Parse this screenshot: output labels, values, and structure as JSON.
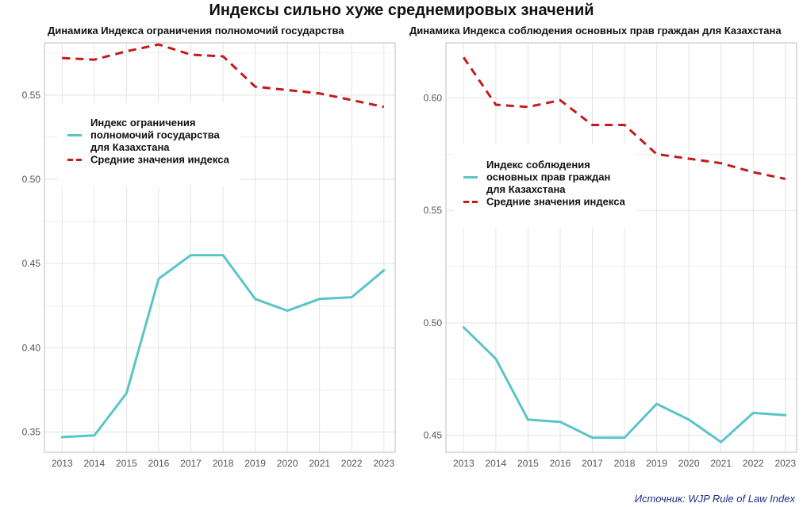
{
  "title": "Индексы сильно хуже среднемировых значений",
  "source": "Источник: WJP Rule of Law Index",
  "colors": {
    "index_line": "#5bc4c8",
    "average_line": "#c41a1a",
    "grid": "#e3e3e3",
    "panel_border": "#bdbdbd"
  },
  "chart_data": [
    {
      "type": "line",
      "title": "Динамика Индекса ограничения полномочий государства",
      "x": [
        2013,
        2014,
        2015,
        2016,
        2017,
        2018,
        2019,
        2020,
        2021,
        2022,
        2023
      ],
      "ylim": [
        0.338,
        0.581
      ],
      "yticks": [
        0.35,
        0.4,
        0.45,
        0.5,
        0.55
      ],
      "ytick_labels": [
        "0.35",
        "0.40",
        "0.45",
        "0.50",
        "0.55"
      ],
      "grid": true,
      "legend_position": "left-middle",
      "series": [
        {
          "name": "Индекс ограничения полномочий государства для Казахстана",
          "legend_lines": [
            "Индекс ограничения",
            "полномочий государства",
            "для Казахстана"
          ],
          "style": "solid",
          "color": "#5bc4c8",
          "values": [
            0.347,
            0.348,
            0.373,
            0.441,
            0.455,
            0.455,
            0.429,
            0.422,
            0.429,
            0.43,
            0.446
          ]
        },
        {
          "name": "Средние значения индекса",
          "legend_lines": [
            "Средние значения индекса"
          ],
          "style": "dashed",
          "color": "#c41a1a",
          "values": [
            0.572,
            0.571,
            0.576,
            0.58,
            0.574,
            0.573,
            0.555,
            0.553,
            0.551,
            0.547,
            0.543
          ]
        }
      ]
    },
    {
      "type": "line",
      "title": "Динамика Индекса соблюдения основных прав граждан для Казахстана",
      "x": [
        2013,
        2014,
        2015,
        2016,
        2017,
        2018,
        2019,
        2020,
        2021,
        2022,
        2023
      ],
      "ylim": [
        0.4425,
        0.6245
      ],
      "yticks": [
        0.45,
        0.5,
        0.55,
        0.6
      ],
      "ytick_labels": [
        "0.45",
        "0.50",
        "0.55",
        "0.60"
      ],
      "grid": true,
      "legend_position": "left-middle",
      "series": [
        {
          "name": "Индекс соблюдения основных прав граждан для Казахстана",
          "legend_lines": [
            "Индекс соблюдения",
            "основных прав граждан",
            "для Казахстана"
          ],
          "style": "solid",
          "color": "#5bc4c8",
          "values": [
            0.498,
            0.484,
            0.457,
            0.456,
            0.449,
            0.449,
            0.464,
            0.457,
            0.447,
            0.46,
            0.459
          ]
        },
        {
          "name": "Средние значения индекса",
          "legend_lines": [
            "Средние значения индекса"
          ],
          "style": "dashed",
          "color": "#c41a1a",
          "values": [
            0.618,
            0.597,
            0.596,
            0.599,
            0.588,
            0.588,
            0.575,
            0.573,
            0.571,
            0.567,
            0.564
          ]
        }
      ]
    }
  ]
}
